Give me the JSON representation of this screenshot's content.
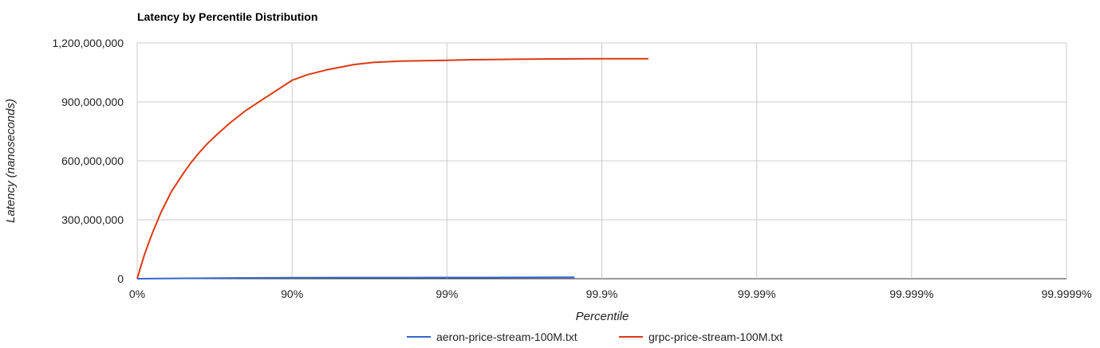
{
  "chart_data": {
    "type": "line",
    "title": "Latency by Percentile Distribution",
    "xlabel": "Percentile",
    "ylabel": "Latency (nanoseconds)",
    "x_scale": "percentile-log (1/(1-p))",
    "x_ticks": [
      "0%",
      "90%",
      "99%",
      "99.9%",
      "99.99%",
      "99.999%",
      "99.9999%"
    ],
    "y_ticks": [
      "0",
      "300,000,000",
      "600,000,000",
      "900,000,000",
      "1,200,000,000"
    ],
    "ylim": [
      0,
      1200000000
    ],
    "grid": true,
    "legend_position": "bottom",
    "series": [
      {
        "name": "aeron-price-stream-100M.txt",
        "color": "#3366cc",
        "points": [
          [
            0,
            0
          ],
          [
            50,
            2000000
          ],
          [
            75,
            3500000
          ],
          [
            90,
            5000000
          ],
          [
            95,
            5500000
          ],
          [
            99,
            6000000
          ],
          [
            99.5,
            6300000
          ],
          [
            99.7,
            6500000
          ],
          [
            99.8,
            7000000
          ],
          [
            99.85,
            7200000
          ]
        ]
      },
      {
        "name": "grpc-price-stream-100M.txt",
        "color": "#dc3912",
        "points": [
          [
            0,
            0
          ],
          [
            5,
            60000000
          ],
          [
            10,
            120000000
          ],
          [
            15,
            175000000
          ],
          [
            20,
            230000000
          ],
          [
            30,
            340000000
          ],
          [
            40,
            445000000
          ],
          [
            50,
            540000000
          ],
          [
            55,
            590000000
          ],
          [
            60,
            640000000
          ],
          [
            65,
            690000000
          ],
          [
            70,
            740000000
          ],
          [
            75,
            795000000
          ],
          [
            80,
            855000000
          ],
          [
            85,
            920000000
          ],
          [
            90,
            1010000000
          ],
          [
            92,
            1038000000
          ],
          [
            94,
            1063000000
          ],
          [
            96,
            1090000000
          ],
          [
            97,
            1101000000
          ],
          [
            98,
            1108000000
          ],
          [
            99,
            1112000000
          ],
          [
            99.3,
            1115000000
          ],
          [
            99.5,
            1116000000
          ],
          [
            99.7,
            1118000000
          ],
          [
            99.8,
            1119000000
          ],
          [
            99.9,
            1120000000
          ],
          [
            99.95,
            1120000000
          ]
        ]
      }
    ]
  }
}
